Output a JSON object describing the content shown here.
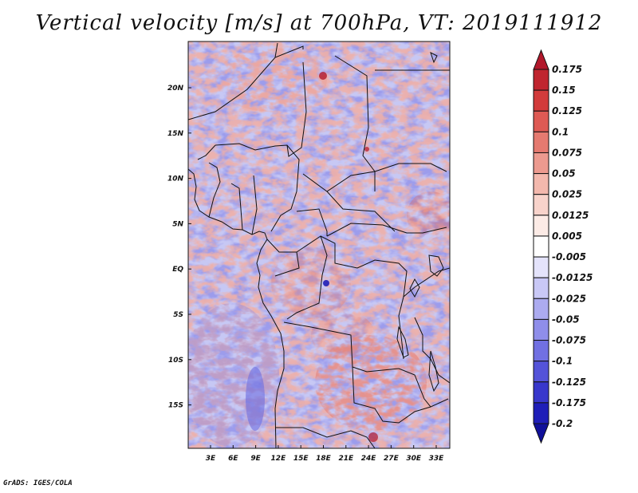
{
  "title": "Vertical velocity [m/s] at 700hPa, VT: 2019111912",
  "credit": "GrADS: IGES/COLA",
  "lat_labels": [
    "20N",
    "15N",
    "10N",
    "5N",
    "EQ",
    "5S",
    "10S",
    "15S"
  ],
  "lon_labels": [
    "3E",
    "6E",
    "9E",
    "12E",
    "15E",
    "18E",
    "21E",
    "24E",
    "27E",
    "30E",
    "33E"
  ],
  "colorbar": {
    "labels": [
      "0.175",
      "0.15",
      "0.125",
      "0.1",
      "0.075",
      "0.05",
      "0.025",
      "0.0125",
      "0.005",
      "-0.005",
      "-0.0125",
      "-0.025",
      "-0.05",
      "-0.075",
      "-0.1",
      "-0.125",
      "-0.175",
      "-0.2"
    ],
    "colors": [
      "#b2182b",
      "#c0252f",
      "#d23b3b",
      "#de5a54",
      "#e57a70",
      "#ec9a8f",
      "#f3b8ad",
      "#f8d3cb",
      "#fcebe6",
      "#ffffff",
      "#e4e3fb",
      "#c9c8f6",
      "#acabf0",
      "#8f8eea",
      "#7170e2",
      "#5453d9",
      "#3837cc",
      "#1f1eb8",
      "#10109a"
    ]
  },
  "map": {
    "lon_range": [
      0,
      35
    ],
    "lat_range": [
      -20,
      24.5
    ]
  }
}
